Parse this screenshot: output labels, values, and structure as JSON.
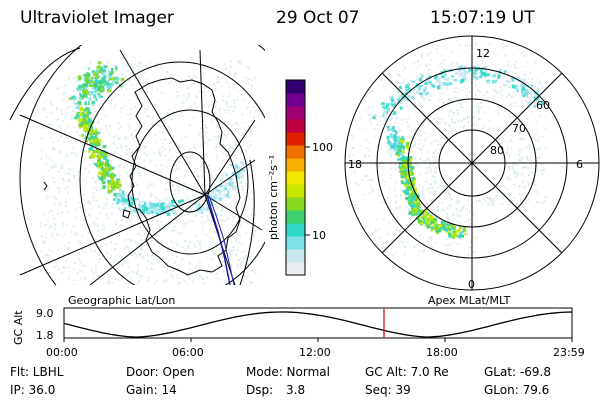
{
  "header": {
    "instrument": "Ultraviolet Imager",
    "date": "29 Oct 07",
    "time": "15:07:19 UT"
  },
  "colorbar": {
    "unit_label": "photon cm⁻²s⁻¹",
    "tick_100": "100",
    "tick_10": "10",
    "colors": [
      "#e8eef0",
      "#c9e8ee",
      "#7fe0ea",
      "#30d8c8",
      "#40d070",
      "#88d820",
      "#c8e800",
      "#f0e800",
      "#f8b000",
      "#f07000",
      "#e02000",
      "#c00040",
      "#a00070",
      "#700090",
      "#300070"
    ]
  },
  "geo_map": {
    "label": "Geographic Lat/Lon"
  },
  "polar_map": {
    "label": "Apex MLat/MLT",
    "mlt_labels": {
      "top": "12",
      "left": "18",
      "right": "6",
      "bottom": "0"
    },
    "lat_labels": {
      "lat60": "60",
      "lat70": "70",
      "lat80": "80"
    }
  },
  "timeline": {
    "ylabel": "GC Alt",
    "y_top": "9.0",
    "y_bottom": "1.8",
    "ticks": [
      "00:00",
      "06:00",
      "12:00",
      "18:00",
      "23:59"
    ],
    "current_hour": 15.12,
    "line_color": "#cc0000"
  },
  "info": {
    "filter": "Flt: LBHL",
    "door": "Door: Open",
    "mode": "Mode: Normal",
    "gc_alt": "GC Alt: 7.0 Re",
    "glat": "GLat: -69.8",
    "ip": "IP: 36.0",
    "gain": "Gain: 14",
    "dsp_label": "Dsp:",
    "dsp_value": "3.8",
    "seq": "Seq: 39",
    "glon": "GLon: 79.6"
  }
}
